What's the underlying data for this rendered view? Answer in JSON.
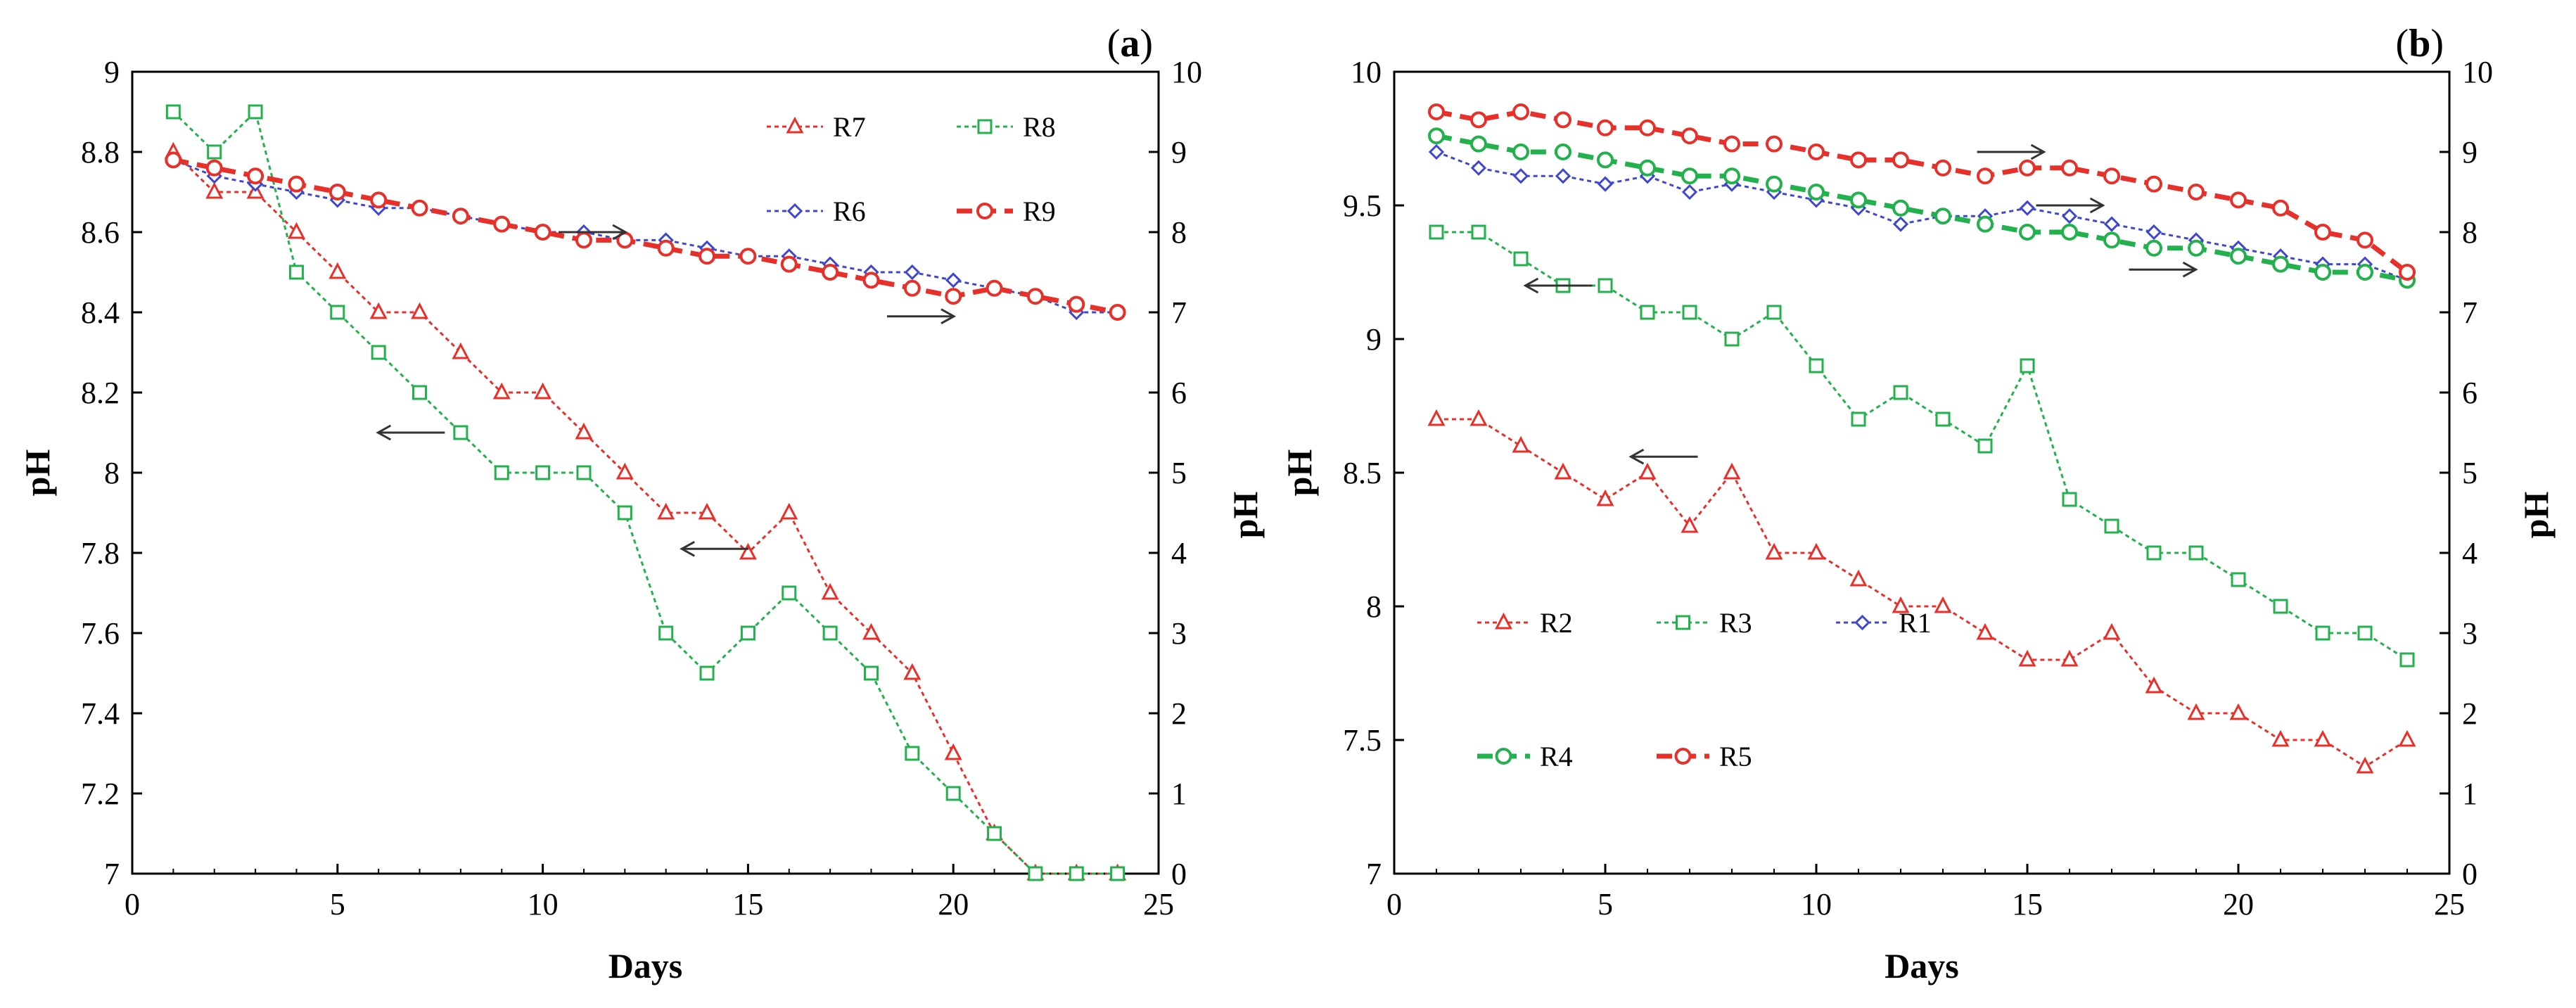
{
  "chart_data": [
    {
      "type": "line",
      "panel_label": "a",
      "xlabel": "Days",
      "ylabel": "pH",
      "y2label": "pH",
      "xlim": [
        0,
        25
      ],
      "ylim": [
        7,
        9
      ],
      "y2lim": [
        0,
        10
      ],
      "x_ticks": [
        "0",
        "5",
        "10",
        "15",
        "20",
        "25"
      ],
      "y_ticks": [
        "7",
        "7.2",
        "7.4",
        "7.6",
        "7.8",
        "8",
        "8.2",
        "8.4",
        "8.6",
        "8.8",
        "9"
      ],
      "y2_ticks": [
        "0",
        "1",
        "2",
        "3",
        "4",
        "5",
        "6",
        "7",
        "8",
        "9",
        "10"
      ],
      "grid": false,
      "series": [
        {
          "name": "R7",
          "axis": "left",
          "color": "#e8302a",
          "marker": "triangle",
          "style": "dotted",
          "x": [
            1,
            2,
            3,
            4,
            5,
            6,
            7,
            8,
            9,
            10,
            11,
            12,
            13,
            14,
            15,
            16,
            17,
            18,
            19,
            20,
            21,
            22,
            23,
            24
          ],
          "y": [
            8.8,
            8.7,
            8.7,
            8.6,
            8.5,
            8.4,
            8.4,
            8.3,
            8.2,
            8.2,
            8.1,
            8.0,
            7.9,
            7.9,
            7.8,
            7.9,
            7.7,
            7.6,
            7.5,
            7.3,
            7.1,
            7.0,
            7.0,
            7.0
          ]
        },
        {
          "name": "R8",
          "axis": "left",
          "color": "#22b14c",
          "marker": "square",
          "style": "dotted",
          "x": [
            1,
            2,
            3,
            4,
            5,
            6,
            7,
            8,
            9,
            10,
            11,
            12,
            13,
            14,
            15,
            16,
            17,
            18,
            19,
            20,
            21,
            22,
            23,
            24
          ],
          "y": [
            8.9,
            8.8,
            8.9,
            8.5,
            8.4,
            8.3,
            8.2,
            8.1,
            8.0,
            8.0,
            8.0,
            7.9,
            7.6,
            7.5,
            7.6,
            7.7,
            7.6,
            7.5,
            7.3,
            7.2,
            7.1,
            7.0,
            7.0,
            7.0
          ]
        },
        {
          "name": "R6",
          "axis": "right",
          "color": "#3f48cc",
          "marker": "diamond",
          "style": "dotted",
          "x": [
            1,
            2,
            3,
            4,
            5,
            6,
            7,
            8,
            9,
            10,
            11,
            12,
            13,
            14,
            15,
            16,
            17,
            18,
            19,
            20,
            21,
            22,
            23,
            24
          ],
          "y": [
            8.9,
            8.7,
            8.6,
            8.5,
            8.4,
            8.3,
            8.3,
            8.2,
            8.1,
            8.0,
            8.0,
            7.9,
            7.9,
            7.8,
            7.7,
            7.7,
            7.6,
            7.5,
            7.5,
            7.4,
            7.3,
            7.2,
            7.0,
            7.0
          ]
        },
        {
          "name": "R9",
          "axis": "right",
          "color": "#e8302a",
          "marker": "circle",
          "style": "dashed-bold",
          "x": [
            1,
            2,
            3,
            4,
            5,
            6,
            7,
            8,
            9,
            10,
            11,
            12,
            13,
            14,
            15,
            16,
            17,
            18,
            19,
            20,
            21,
            22,
            23,
            24
          ],
          "y": [
            8.9,
            8.8,
            8.7,
            8.6,
            8.5,
            8.4,
            8.3,
            8.2,
            8.1,
            8.0,
            7.9,
            7.9,
            7.8,
            7.7,
            7.7,
            7.6,
            7.5,
            7.4,
            7.3,
            7.2,
            7.3,
            7.2,
            7.1,
            7.0
          ]
        }
      ],
      "legend": [
        {
          "name": "R7",
          "series": 0,
          "col": 0,
          "row": 0
        },
        {
          "name": "R8",
          "series": 1,
          "col": 1,
          "row": 0
        },
        {
          "name": "R6",
          "series": 2,
          "col": 0,
          "row": 1
        },
        {
          "name": "R9",
          "series": 3,
          "col": 1,
          "row": 1
        }
      ],
      "arrows": [
        {
          "x": 11.2,
          "y": 8.6,
          "direction": "right",
          "axis": "left"
        },
        {
          "x": 19.2,
          "y": 8.39,
          "direction": "right",
          "axis": "left"
        },
        {
          "x": 6.8,
          "y": 8.1,
          "direction": "left",
          "axis": "left"
        },
        {
          "x": 14.2,
          "y": 7.81,
          "direction": "left",
          "axis": "left"
        }
      ]
    },
    {
      "type": "line",
      "panel_label": "b",
      "xlabel": "Days",
      "ylabel": "pH",
      "y2label": "pH",
      "xlim": [
        0,
        25
      ],
      "ylim": [
        7,
        10
      ],
      "y2lim": [
        0,
        10
      ],
      "x_ticks": [
        "0",
        "5",
        "10",
        "15",
        "20",
        "25"
      ],
      "y_ticks": [
        "7",
        "7.5",
        "8",
        "8.5",
        "9",
        "9.5",
        "10"
      ],
      "y2_ticks": [
        "0",
        "1",
        "2",
        "3",
        "4",
        "5",
        "6",
        "7",
        "8",
        "9",
        "10"
      ],
      "grid": false,
      "series": [
        {
          "name": "R2",
          "axis": "left",
          "color": "#e8302a",
          "marker": "triangle",
          "style": "dotted",
          "x": [
            1,
            2,
            3,
            4,
            5,
            6,
            7,
            8,
            9,
            10,
            11,
            12,
            13,
            14,
            15,
            16,
            17,
            18,
            19,
            20,
            21,
            22,
            23,
            24
          ],
          "y": [
            8.7,
            8.7,
            8.6,
            8.5,
            8.4,
            8.5,
            8.3,
            8.5,
            8.2,
            8.2,
            8.1,
            8.0,
            8.0,
            7.9,
            7.8,
            7.8,
            7.9,
            7.7,
            7.6,
            7.6,
            7.5,
            7.5,
            7.4,
            7.5
          ]
        },
        {
          "name": "R3",
          "axis": "left",
          "color": "#22b14c",
          "marker": "square",
          "style": "dotted",
          "x": [
            1,
            2,
            3,
            4,
            5,
            6,
            7,
            8,
            9,
            10,
            11,
            12,
            13,
            14,
            15,
            16,
            17,
            18,
            19,
            20,
            21,
            22,
            23,
            24
          ],
          "y": [
            9.4,
            9.4,
            9.3,
            9.2,
            9.2,
            9.1,
            9.1,
            9.0,
            9.1,
            8.9,
            8.7,
            8.8,
            8.7,
            8.6,
            8.9,
            8.4,
            8.3,
            8.2,
            8.2,
            8.1,
            8.0,
            7.9,
            7.9,
            7.8
          ]
        },
        {
          "name": "R1",
          "axis": "right",
          "color": "#3f48cc",
          "marker": "diamond",
          "style": "dotted",
          "x": [
            1,
            2,
            3,
            4,
            5,
            6,
            7,
            8,
            9,
            10,
            11,
            12,
            13,
            14,
            15,
            16,
            17,
            18,
            19,
            20,
            21,
            22,
            23,
            24
          ],
          "y": [
            9.0,
            8.8,
            8.7,
            8.7,
            8.6,
            8.7,
            8.5,
            8.6,
            8.5,
            8.4,
            8.3,
            8.1,
            8.2,
            8.2,
            8.3,
            8.2,
            8.1,
            8.0,
            7.9,
            7.8,
            7.7,
            7.6,
            7.6,
            7.4
          ]
        },
        {
          "name": "R4",
          "axis": "right",
          "color": "#22b14c",
          "marker": "circle",
          "style": "dashed-bold",
          "x": [
            1,
            2,
            3,
            4,
            5,
            6,
            7,
            8,
            9,
            10,
            11,
            12,
            13,
            14,
            15,
            16,
            17,
            18,
            19,
            20,
            21,
            22,
            23,
            24
          ],
          "y": [
            9.2,
            9.1,
            9.0,
            9.0,
            8.9,
            8.8,
            8.7,
            8.7,
            8.6,
            8.5,
            8.4,
            8.3,
            8.2,
            8.1,
            8.0,
            8.0,
            7.9,
            7.8,
            7.8,
            7.7,
            7.6,
            7.5,
            7.5,
            7.4
          ]
        },
        {
          "name": "R5",
          "axis": "right",
          "color": "#e8302a",
          "marker": "circle",
          "style": "dashed-bold",
          "x": [
            1,
            2,
            3,
            4,
            5,
            6,
            7,
            8,
            9,
            10,
            11,
            12,
            13,
            14,
            15,
            16,
            17,
            18,
            19,
            20,
            21,
            22,
            23,
            24
          ],
          "y": [
            9.5,
            9.4,
            9.5,
            9.4,
            9.3,
            9.3,
            9.2,
            9.1,
            9.1,
            9.0,
            8.9,
            8.9,
            8.8,
            8.7,
            8.8,
            8.8,
            8.7,
            8.6,
            8.5,
            8.4,
            8.3,
            8.0,
            7.9,
            7.5
          ]
        }
      ],
      "legend": [
        {
          "name": "R2",
          "series": 0,
          "col": 0,
          "row": 0
        },
        {
          "name": "R3",
          "series": 1,
          "col": 1,
          "row": 0
        },
        {
          "name": "R1",
          "series": 2,
          "col": 2,
          "row": 0
        },
        {
          "name": "R4",
          "series": 3,
          "col": 0,
          "row": 1
        },
        {
          "name": "R5",
          "series": 4,
          "col": 1,
          "row": 1
        }
      ],
      "arrows": [
        {
          "x": 14.6,
          "y": 9.7,
          "direction": "right",
          "axis": "left"
        },
        {
          "x": 16.0,
          "y": 9.5,
          "direction": "right",
          "axis": "left"
        },
        {
          "x": 18.2,
          "y": 9.26,
          "direction": "right",
          "axis": "left"
        },
        {
          "x": 3.9,
          "y": 9.2,
          "direction": "left",
          "axis": "left"
        },
        {
          "x": 6.4,
          "y": 8.56,
          "direction": "left",
          "axis": "left"
        }
      ]
    }
  ]
}
